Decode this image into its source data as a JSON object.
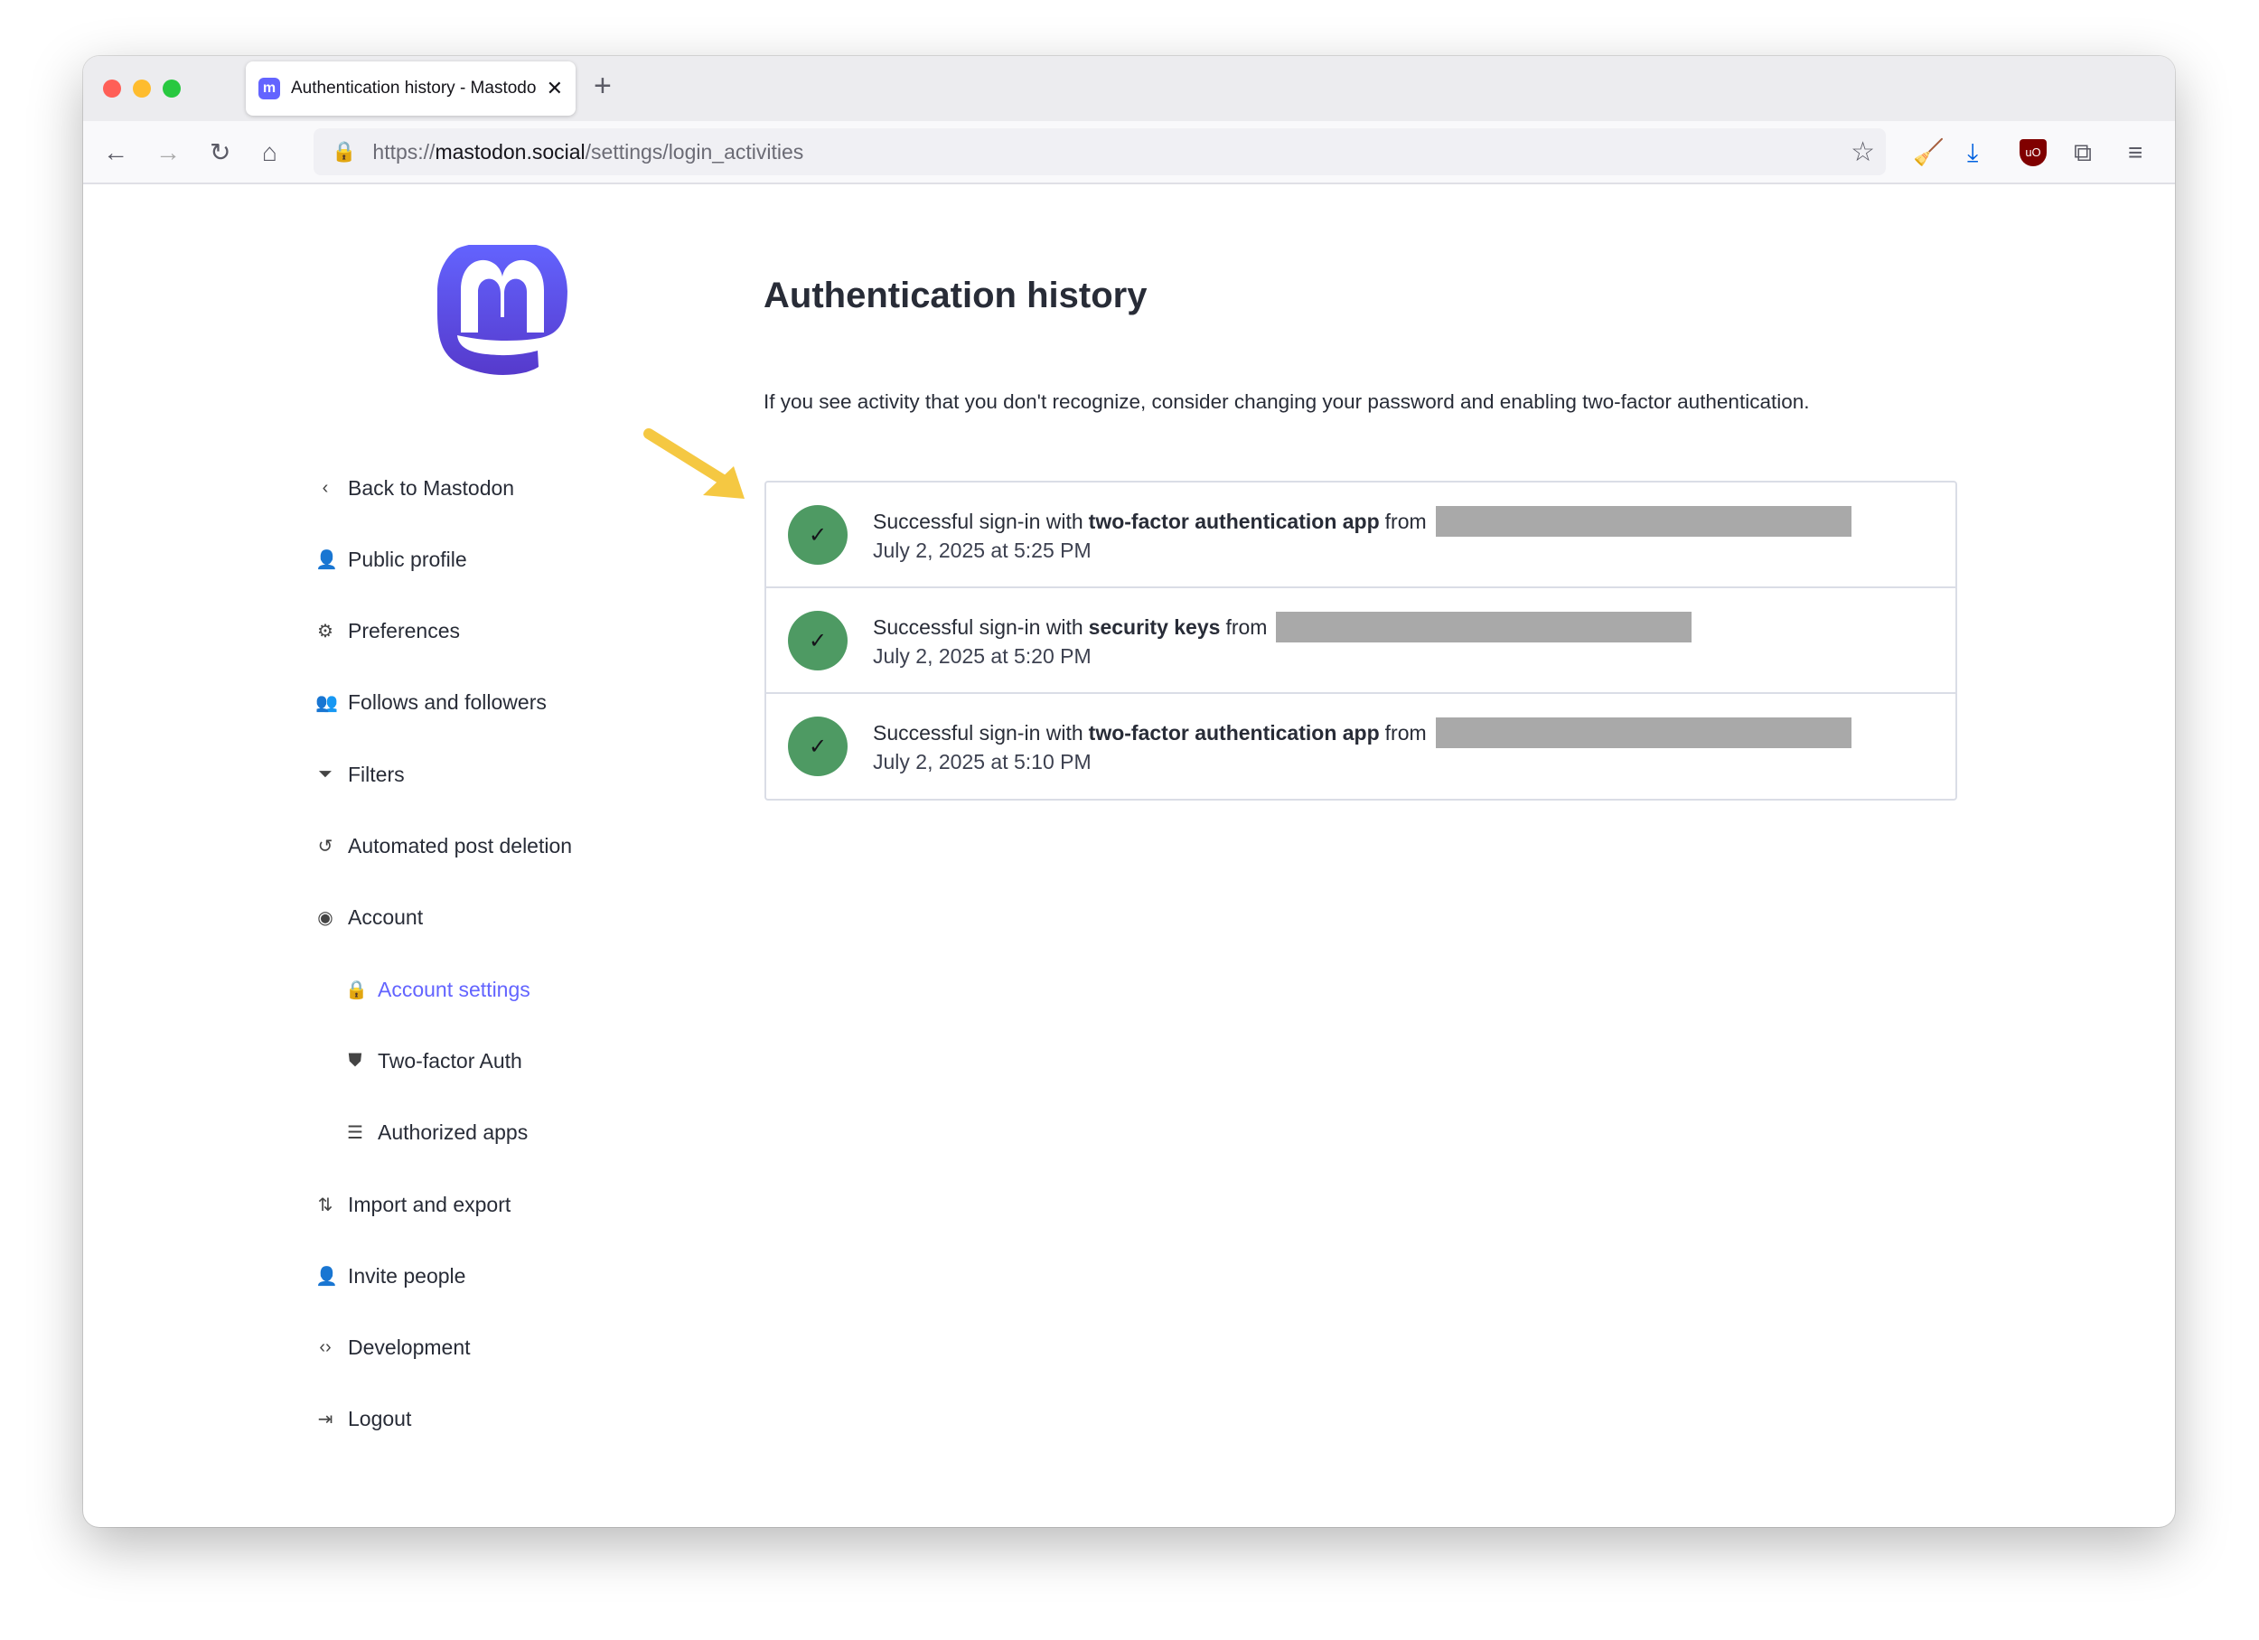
{
  "browser": {
    "tab_title": "Authentication history - Mastodon",
    "url_prefix": "https://",
    "url_host": "mastodon.social",
    "url_path": "/settings/login_activities",
    "colors": {
      "close": "#ff5f57",
      "minimize": "#febc2e",
      "maximize": "#28c840"
    }
  },
  "sidebar": {
    "items": [
      {
        "label": "Back to Mastodon",
        "icon": "chevron-left-icon",
        "glyph": "‹"
      },
      {
        "label": "Public profile",
        "icon": "user-icon",
        "glyph": "👤"
      },
      {
        "label": "Preferences",
        "icon": "gear-icon",
        "glyph": "⚙"
      },
      {
        "label": "Follows and followers",
        "icon": "users-icon",
        "glyph": "👥"
      },
      {
        "label": "Filters",
        "icon": "filter-icon",
        "glyph": "⏷"
      },
      {
        "label": "Automated post deletion",
        "icon": "history-icon",
        "glyph": "↺"
      },
      {
        "label": "Account",
        "icon": "account-circle-icon",
        "glyph": "◉"
      },
      {
        "label": "Account settings",
        "icon": "lock-icon",
        "glyph": "🔒",
        "sub": true,
        "active": true
      },
      {
        "label": "Two-factor Auth",
        "icon": "shield-icon",
        "glyph": "⛊",
        "sub": true
      },
      {
        "label": "Authorized apps",
        "icon": "list-icon",
        "glyph": "☰",
        "sub": true
      },
      {
        "label": "Import and export",
        "icon": "import-export-icon",
        "glyph": "⇅"
      },
      {
        "label": "Invite people",
        "icon": "person-add-icon",
        "glyph": "👤"
      },
      {
        "label": "Development",
        "icon": "code-icon",
        "glyph": "‹›"
      },
      {
        "label": "Logout",
        "icon": "logout-icon",
        "glyph": "⇥"
      }
    ],
    "accent": "#6364ff"
  },
  "main": {
    "title": "Authentication history",
    "description": "If you see activity that you don't recognize, consider changing your password and enabling two-factor authentication.",
    "entries": [
      {
        "prefix": "Successful sign-in with",
        "method": "two-factor authentication app",
        "from": "from",
        "time": "July 2, 2025 at 5:25 PM"
      },
      {
        "prefix": "Successful sign-in with",
        "method": "security keys",
        "from": "from",
        "time": "July 2, 2025 at 5:20 PM"
      },
      {
        "prefix": "Successful sign-in with",
        "method": "two-factor authentication app",
        "from": "from",
        "time": "July 2, 2025 at 5:10 PM"
      }
    ],
    "success_color": "#4e9a63",
    "annotation_arrow_color": "#f5c842"
  }
}
